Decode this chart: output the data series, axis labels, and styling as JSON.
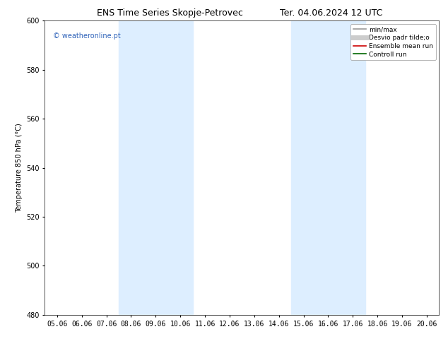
{
  "title_left": "ENS Time Series Skopje-Petrovec",
  "title_right": "Ter. 04.06.2024 12 UTC",
  "ylabel": "Temperature 850 hPa (°C)",
  "watermark": "© weatheronline.pt",
  "xlim_dates": [
    "05.06",
    "06.06",
    "07.06",
    "08.06",
    "09.06",
    "10.06",
    "11.06",
    "12.06",
    "13.06",
    "14.06",
    "15.06",
    "16.06",
    "17.06",
    "18.06",
    "19.06",
    "20.06"
  ],
  "ylim": [
    480,
    600
  ],
  "yticks": [
    480,
    500,
    520,
    540,
    560,
    580,
    600
  ],
  "shaded_regions": [
    {
      "xstart": 3,
      "xend": 5
    },
    {
      "xstart": 10,
      "xend": 12
    }
  ],
  "shaded_color": "#ddeeff",
  "background_color": "#ffffff",
  "plot_bg_color": "#ffffff",
  "legend_entries": [
    {
      "label": "min/max",
      "color": "#999999",
      "lw": 1.2,
      "style": "solid"
    },
    {
      "label": "Desvio padr tilde;o",
      "color": "#cccccc",
      "lw": 5,
      "style": "solid"
    },
    {
      "label": "Ensemble mean run",
      "color": "#cc0000",
      "lw": 1.2,
      "style": "solid"
    },
    {
      "label": "Controll run",
      "color": "#006600",
      "lw": 1.2,
      "style": "solid"
    }
  ],
  "title_fontsize": 9,
  "tick_fontsize": 7,
  "ylabel_fontsize": 7,
  "legend_fontsize": 6.5,
  "watermark_color": "#3366bb",
  "watermark_fontsize": 7
}
